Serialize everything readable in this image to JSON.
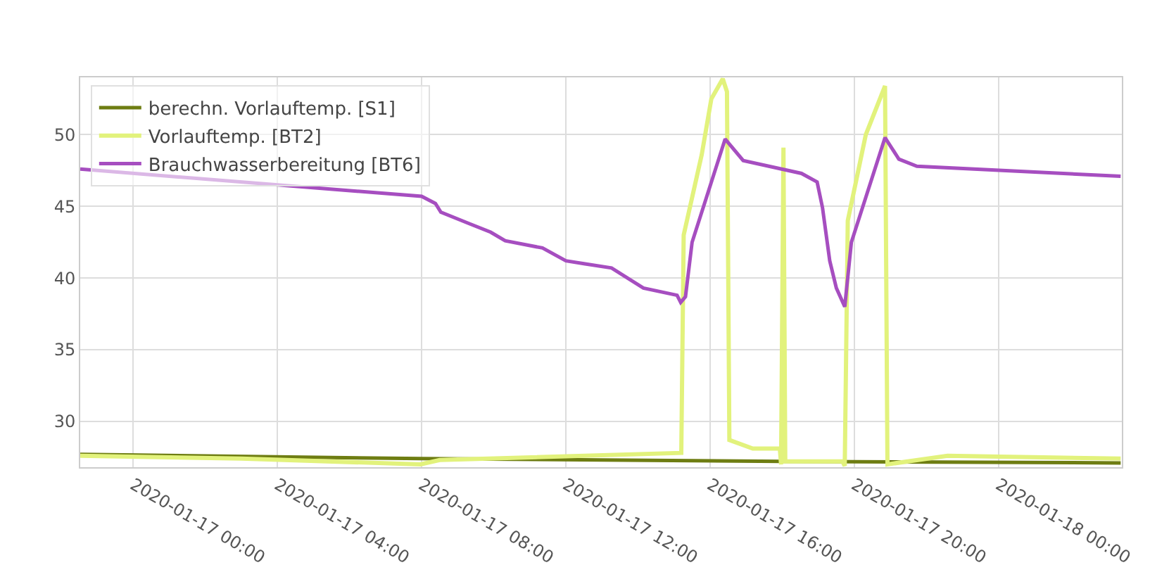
{
  "chart_data": {
    "type": "line",
    "series": [
      {
        "name": "berechn. Vorlauftemp. [S1]",
        "color": "#6e7d12",
        "x": [
          "2020-01-16T22:32",
          "2020-01-17T08:00",
          "2020-01-17T18:00",
          "2020-01-18T03:23"
        ],
        "values": [
          27.7,
          27.4,
          27.2,
          27.1
        ]
      },
      {
        "name": "Vorlauftemp. [BT2]",
        "color": "#e2f27c",
        "x": [
          "2020-01-16T22:32",
          "2020-01-17T03:00",
          "2020-01-17T07:58",
          "2020-01-17T08:30",
          "2020-01-17T15:12",
          "2020-01-17T15:16",
          "2020-01-17T15:46",
          "2020-01-17T16:02",
          "2020-01-17T16:21",
          "2020-01-17T16:28",
          "2020-01-17T16:32",
          "2020-01-17T17:11",
          "2020-01-17T17:56",
          "2020-01-17T17:58",
          "2020-01-17T18:02",
          "2020-01-17T18:05",
          "2020-01-17T19:40",
          "2020-01-17T19:44",
          "2020-01-17T19:49",
          "2020-01-17T20:19",
          "2020-01-17T20:51",
          "2020-01-17T20:55",
          "2020-01-17T22:35",
          "2020-01-18T03:23"
        ],
        "values": [
          27.6,
          27.4,
          27.0,
          27.3,
          27.8,
          43.0,
          48.6,
          52.5,
          53.9,
          53.0,
          28.7,
          28.1,
          28.1,
          27.0,
          49.1,
          27.2,
          27.2,
          26.9,
          44.0,
          50.0,
          53.4,
          27.0,
          27.6,
          27.4
        ]
      },
      {
        "name": "Brauchwasserbereitung [BT6]",
        "color": "#a64ec0",
        "x": [
          "2020-01-16T22:32",
          "2020-01-17T08:00",
          "2020-01-17T08:23",
          "2020-01-17T08:32",
          "2020-01-17T09:19",
          "2020-01-17T09:55",
          "2020-01-17T10:19",
          "2020-01-17T11:21",
          "2020-01-17T12:00",
          "2020-01-17T12:30",
          "2020-01-17T13:16",
          "2020-01-17T14:09",
          "2020-01-17T15:05",
          "2020-01-17T15:11",
          "2020-01-17T15:19",
          "2020-01-17T15:30",
          "2020-01-17T16:25",
          "2020-01-17T16:55",
          "2020-01-17T18:32",
          "2020-01-17T18:58",
          "2020-01-17T19:07",
          "2020-01-17T19:19",
          "2020-01-17T19:30",
          "2020-01-17T19:44",
          "2020-01-17T19:55",
          "2020-01-17T20:51",
          "2020-01-17T21:14",
          "2020-01-17T21:44",
          "2020-01-18T03:23"
        ],
        "values": [
          47.6,
          45.7,
          45.2,
          44.6,
          43.8,
          43.2,
          42.6,
          42.1,
          41.2,
          41.0,
          40.7,
          39.3,
          38.8,
          38.3,
          38.7,
          42.5,
          49.7,
          48.2,
          47.3,
          46.7,
          44.9,
          41.2,
          39.3,
          38.0,
          42.5,
          49.8,
          48.3,
          47.8,
          47.1
        ]
      }
    ],
    "xlim": [
      "2020-01-16T22:32",
      "2020-01-18T03:25"
    ],
    "xticks": [
      {
        "value": "2020-01-17T00:00",
        "label": "2020-01-17 00:00"
      },
      {
        "value": "2020-01-17T04:00",
        "label": "2020-01-17 04:00"
      },
      {
        "value": "2020-01-17T08:00",
        "label": "2020-01-17 08:00"
      },
      {
        "value": "2020-01-17T12:00",
        "label": "2020-01-17 12:00"
      },
      {
        "value": "2020-01-17T16:00",
        "label": "2020-01-17 16:00"
      },
      {
        "value": "2020-01-17T20:00",
        "label": "2020-01-17 20:00"
      },
      {
        "value": "2020-01-18T00:00",
        "label": "2020-01-18 00:00"
      }
    ],
    "ylim": [
      26.8,
      54
    ],
    "yticks": [
      30,
      35,
      40,
      45,
      50
    ],
    "grid": true,
    "legend": "top left",
    "marker": "none",
    "line_style": "solid"
  }
}
